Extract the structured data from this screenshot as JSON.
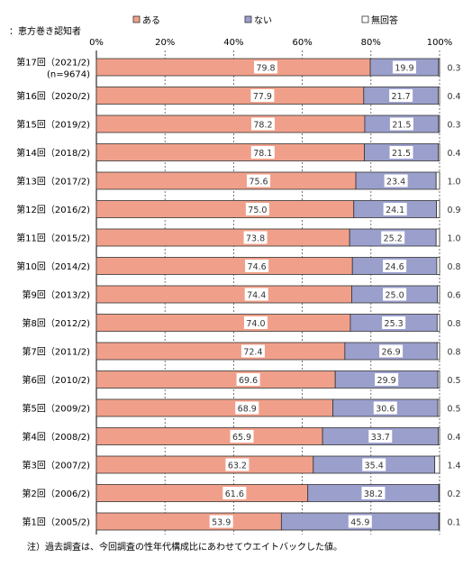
{
  "header_note": "：恵方巻き認知者",
  "footnote": "注）過去調査は、今回調査の性年代構成比にあわせてウエイトバックした値。",
  "colors": {
    "yes": "#f0a08a",
    "no": "#9b9fcc",
    "none": "#ffffff",
    "border": "#333333"
  },
  "chart_data": {
    "type": "bar",
    "stacked": true,
    "orientation": "horizontal",
    "xlim": [
      0,
      100
    ],
    "x_ticks": [
      "0%",
      "20%",
      "40%",
      "60%",
      "80%",
      "100%"
    ],
    "legend_position": "top",
    "categories": [
      "第17回（2021/2)",
      "第16回（2020/2)",
      "第15回（2019/2)",
      "第14回（2018/2)",
      "第13回（2017/2)",
      "第12回（2016/2)",
      "第11回（2015/2)",
      "第10回（2014/2)",
      "第9回（2013/2)",
      "第8回（2012/2)",
      "第7回（2011/2)",
      "第6回（2010/2)",
      "第5回（2009/2)",
      "第4回（2008/2)",
      "第3回（2007/2)",
      "第2回（2006/2)",
      "第1回（2005/2)"
    ],
    "category_sublabels": [
      "(n=9674)",
      "",
      "",
      "",
      "",
      "",
      "",
      "",
      "",
      "",
      "",
      "",
      "",
      "",
      "",
      "",
      ""
    ],
    "series": [
      {
        "name": "ある",
        "values": [
          79.8,
          77.9,
          78.2,
          78.1,
          75.6,
          75.0,
          73.8,
          74.6,
          74.4,
          74.0,
          72.4,
          69.6,
          68.9,
          65.9,
          63.2,
          61.6,
          53.9
        ]
      },
      {
        "name": "ない",
        "values": [
          19.9,
          21.7,
          21.5,
          21.5,
          23.4,
          24.1,
          25.2,
          24.6,
          25.0,
          25.3,
          26.9,
          29.9,
          30.6,
          33.7,
          35.4,
          38.2,
          45.9
        ]
      },
      {
        "name": "無回答",
        "values": [
          0.3,
          0.4,
          0.3,
          0.4,
          1.0,
          0.9,
          1.0,
          0.8,
          0.6,
          0.8,
          0.8,
          0.5,
          0.5,
          0.4,
          1.4,
          0.2,
          0.1
        ]
      }
    ]
  }
}
